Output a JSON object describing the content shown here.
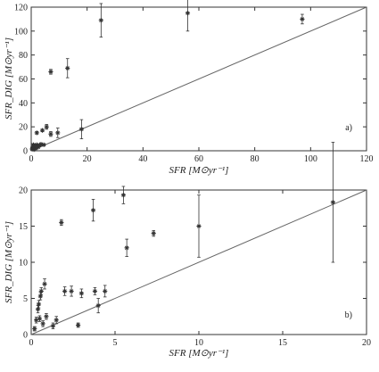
{
  "figure": {
    "panels": [
      {
        "name": "top",
        "label": "a)"
      },
      {
        "name": "bottom",
        "label": "b)"
      }
    ]
  },
  "colors": {
    "axis": "#333333",
    "marker": "#333333",
    "line": "#666666",
    "background": "#ffffff"
  },
  "chart_data": [
    {
      "type": "scatter",
      "panel_label": "a)",
      "xlabel": "SFR [M⊙yr⁻¹]",
      "ylabel": "SFR_DIG [M⊙yr⁻¹]",
      "xlim": [
        0,
        120
      ],
      "ylim": [
        0,
        120
      ],
      "xticks": [
        0,
        20,
        40,
        60,
        80,
        100,
        120
      ],
      "yticks": [
        0,
        20,
        40,
        60,
        80,
        100,
        120
      ],
      "grid": false,
      "reference_line": {
        "type": "one-to-one",
        "from": [
          0,
          0
        ],
        "to": [
          120,
          120
        ]
      },
      "points": [
        {
          "x": 0.3,
          "y": 1.5,
          "yerr": 0.5
        },
        {
          "x": 0.5,
          "y": 3,
          "yerr": 0.5
        },
        {
          "x": 0.8,
          "y": 5,
          "yerr": 0.5
        },
        {
          "x": 1.0,
          "y": 1.0,
          "yerr": 0.5
        },
        {
          "x": 1.3,
          "y": 4,
          "yerr": 0.5
        },
        {
          "x": 1.6,
          "y": 2,
          "yerr": 0.5
        },
        {
          "x": 2.0,
          "y": 5,
          "yerr": 0.5
        },
        {
          "x": 2.5,
          "y": 3,
          "yerr": 0.5
        },
        {
          "x": 3.0,
          "y": 4.5,
          "yerr": 0.5
        },
        {
          "x": 3.5,
          "y": 5.5,
          "yerr": 0.5
        },
        {
          "x": 4.5,
          "y": 5,
          "yerr": 0.5
        },
        {
          "x": 2.0,
          "y": 15,
          "yerr": 1
        },
        {
          "x": 4.0,
          "y": 17,
          "yerr": 1
        },
        {
          "x": 5.5,
          "y": 20,
          "yerr": 2
        },
        {
          "x": 7.0,
          "y": 14,
          "yerr": 2
        },
        {
          "x": 9.5,
          "y": 15,
          "yerr": 4
        },
        {
          "x": 7.0,
          "y": 66,
          "yerr": 2
        },
        {
          "x": 13.0,
          "y": 69,
          "yerr": 8
        },
        {
          "x": 18.0,
          "y": 18,
          "yerr": 8
        },
        {
          "x": 25.0,
          "y": 109,
          "yerr": 14
        },
        {
          "x": 56.0,
          "y": 115,
          "yerr": 15
        },
        {
          "x": 97.0,
          "y": 110,
          "yerr": 4
        }
      ]
    },
    {
      "type": "scatter",
      "panel_label": "b)",
      "xlabel": "SFR [M⊙yr⁻¹]",
      "ylabel": "SFR_DIG [M⊙yr⁻¹]",
      "xlim": [
        0,
        20
      ],
      "ylim": [
        0,
        20
      ],
      "xticks": [
        0,
        5,
        10,
        15,
        20
      ],
      "yticks": [
        0,
        5,
        10,
        15,
        20
      ],
      "grid": false,
      "reference_line": {
        "type": "one-to-one",
        "from": [
          0,
          0
        ],
        "to": [
          20,
          20
        ]
      },
      "points": [
        {
          "x": 0.2,
          "y": 0.8,
          "yerr": 0.3
        },
        {
          "x": 0.3,
          "y": 2.0,
          "yerr": 0.4
        },
        {
          "x": 0.4,
          "y": 3.5,
          "yerr": 0.5
        },
        {
          "x": 0.45,
          "y": 4.2,
          "yerr": 0.5
        },
        {
          "x": 0.5,
          "y": 2.2,
          "yerr": 0.4
        },
        {
          "x": 0.55,
          "y": 5.3,
          "yerr": 0.5
        },
        {
          "x": 0.6,
          "y": 6.0,
          "yerr": 0.5
        },
        {
          "x": 0.7,
          "y": 1.5,
          "yerr": 0.4
        },
        {
          "x": 0.8,
          "y": 7.0,
          "yerr": 0.7
        },
        {
          "x": 0.9,
          "y": 2.5,
          "yerr": 0.4
        },
        {
          "x": 1.3,
          "y": 1.2,
          "yerr": 0.4
        },
        {
          "x": 1.5,
          "y": 2.0,
          "yerr": 0.5
        },
        {
          "x": 1.8,
          "y": 15.5,
          "yerr": 0.4
        },
        {
          "x": 2.0,
          "y": 6.0,
          "yerr": 0.6
        },
        {
          "x": 2.4,
          "y": 6.0,
          "yerr": 0.7
        },
        {
          "x": 2.8,
          "y": 1.3,
          "yerr": 0.3
        },
        {
          "x": 3.0,
          "y": 5.7,
          "yerr": 0.6
        },
        {
          "x": 3.8,
          "y": 6.0,
          "yerr": 0.5
        },
        {
          "x": 4.0,
          "y": 4.0,
          "yerr": 1.0
        },
        {
          "x": 4.4,
          "y": 6.0,
          "yerr": 0.8
        },
        {
          "x": 3.7,
          "y": 17.2,
          "yerr": 1.5
        },
        {
          "x": 5.5,
          "y": 19.3,
          "yerr": 1.2
        },
        {
          "x": 5.7,
          "y": 12.0,
          "yerr": 1.2
        },
        {
          "x": 7.3,
          "y": 14.0,
          "yerr": 0.4
        },
        {
          "x": 10.0,
          "y": 15.0,
          "yerr": 4.3
        },
        {
          "x": 18.0,
          "y": 18.3,
          "yerr": 8.3
        }
      ]
    }
  ]
}
